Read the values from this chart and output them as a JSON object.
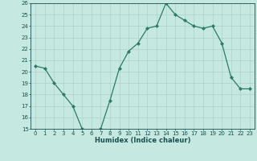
{
  "x": [
    0,
    1,
    2,
    3,
    4,
    5,
    6,
    7,
    8,
    9,
    10,
    11,
    12,
    13,
    14,
    15,
    16,
    17,
    18,
    19,
    20,
    21,
    22,
    23
  ],
  "y": [
    20.5,
    20.3,
    19.0,
    18.0,
    17.0,
    15.0,
    14.8,
    15.0,
    17.5,
    20.3,
    21.8,
    22.5,
    23.8,
    24.0,
    26.0,
    25.0,
    24.5,
    24.0,
    23.8,
    24.0,
    22.5,
    19.5,
    18.5,
    18.5
  ],
  "xlabel": "Humidex (Indice chaleur)",
  "ylim": [
    15,
    26
  ],
  "xlim": [
    -0.5,
    23.5
  ],
  "yticks": [
    15,
    16,
    17,
    18,
    19,
    20,
    21,
    22,
    23,
    24,
    25,
    26
  ],
  "xticks": [
    0,
    1,
    2,
    3,
    4,
    5,
    6,
    7,
    8,
    9,
    10,
    11,
    12,
    13,
    14,
    15,
    16,
    17,
    18,
    19,
    20,
    21,
    22,
    23
  ],
  "line_color": "#2d7a68",
  "marker": "D",
  "marker_size": 2.0,
  "bg_color": "#c5e8e0",
  "grid_color": "#aed0c8",
  "tick_color": "#1a5050",
  "xlabel_fontsize": 6.0,
  "tick_fontsize": 5.0
}
